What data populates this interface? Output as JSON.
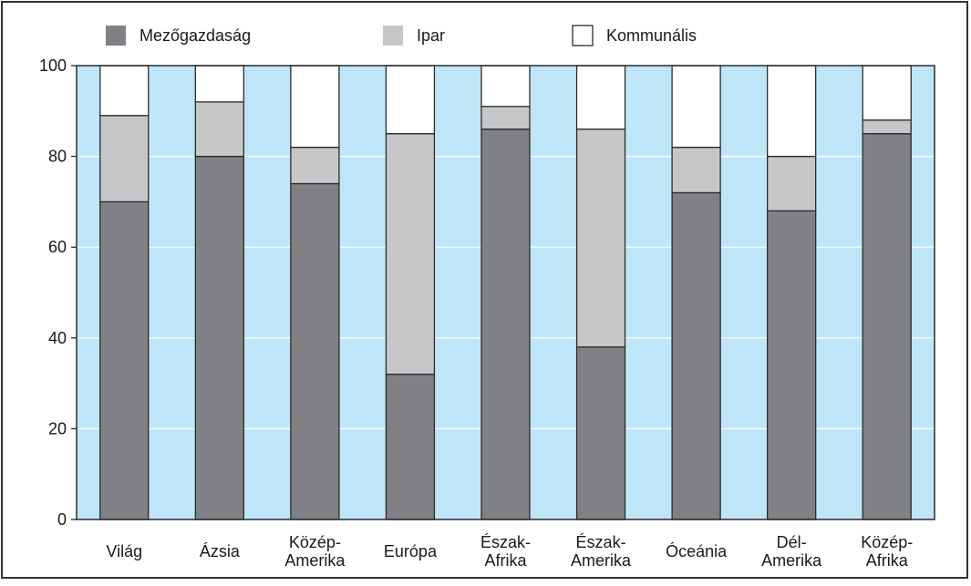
{
  "chart_data": {
    "type": "bar",
    "stacked": true,
    "percent_stacked": true,
    "categories": [
      [
        "Világ"
      ],
      [
        "Ázsia"
      ],
      [
        "Közép-",
        "Amerika"
      ],
      [
        "Európa"
      ],
      [
        "Észak-",
        "Afrika"
      ],
      [
        "Észak-",
        "Amerika"
      ],
      [
        "Óceánia"
      ],
      [
        "Dél-",
        "Amerika"
      ],
      [
        "Közép-",
        "Afrika"
      ]
    ],
    "series": [
      {
        "name": "Mezőgazdaság",
        "color": "#808184",
        "values": [
          70,
          80,
          74,
          32,
          86,
          38,
          72,
          68,
          85
        ]
      },
      {
        "name": "Ipar",
        "color": "#c6c7c9",
        "values": [
          19,
          12,
          8,
          53,
          5,
          48,
          10,
          12,
          3
        ]
      },
      {
        "name": "Kommunális",
        "color": "#ffffff",
        "values": [
          11,
          8,
          18,
          15,
          9,
          14,
          18,
          20,
          12
        ]
      }
    ],
    "ylim": [
      0,
      100
    ],
    "yticks": [
      "0",
      "20",
      "40",
      "60",
      "80",
      "100"
    ],
    "ytick_values": [
      0,
      20,
      40,
      60,
      80,
      100
    ],
    "plot_background": "#bfe6f8",
    "grid": true,
    "grid_color": "#ffffff",
    "legend_position": "top"
  }
}
